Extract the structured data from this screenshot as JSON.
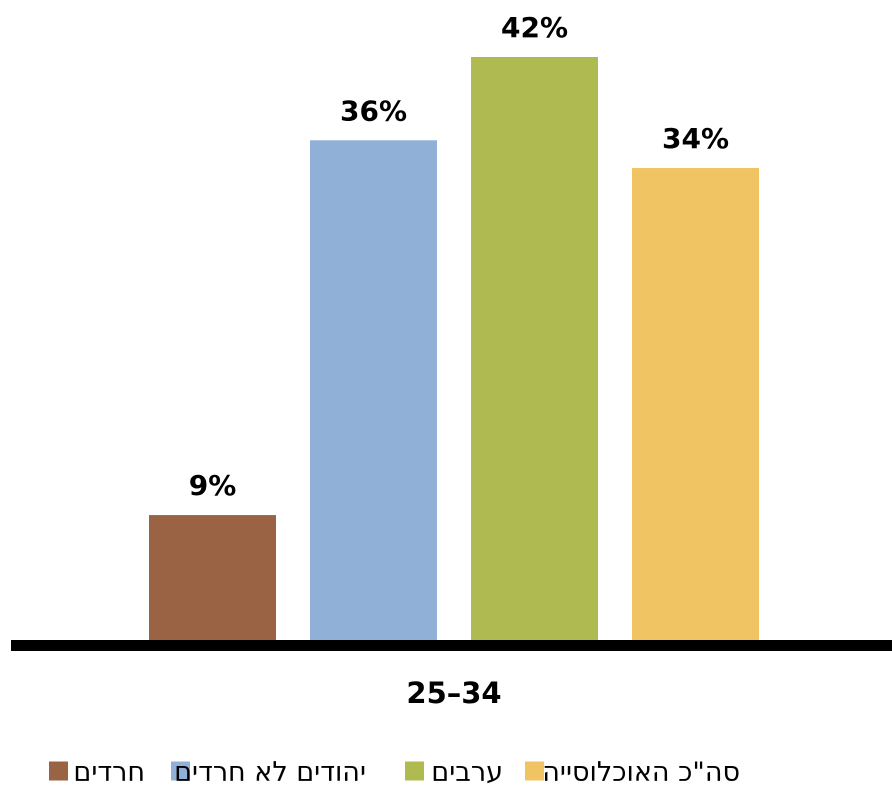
{
  "chart_data": {
    "type": "bar",
    "categories": [
      "25–34"
    ],
    "series": [
      {
        "name": "חרדים",
        "values": [
          9
        ],
        "color": "#9A6343",
        "label": "9%"
      },
      {
        "name": "יהודים לא חרדים",
        "values": [
          36
        ],
        "color": "#91B0D7",
        "label": "36%"
      },
      {
        "name": "ערבים",
        "values": [
          42
        ],
        "color": "#AFBB50",
        "label": "42%"
      },
      {
        "name": "סה\"כ האוכלוסייה",
        "values": [
          34
        ],
        "color": "#F0C462",
        "label": "34%"
      }
    ],
    "ylim": [
      0,
      45
    ],
    "unit": "%",
    "grid": false,
    "legend": "bottom"
  }
}
